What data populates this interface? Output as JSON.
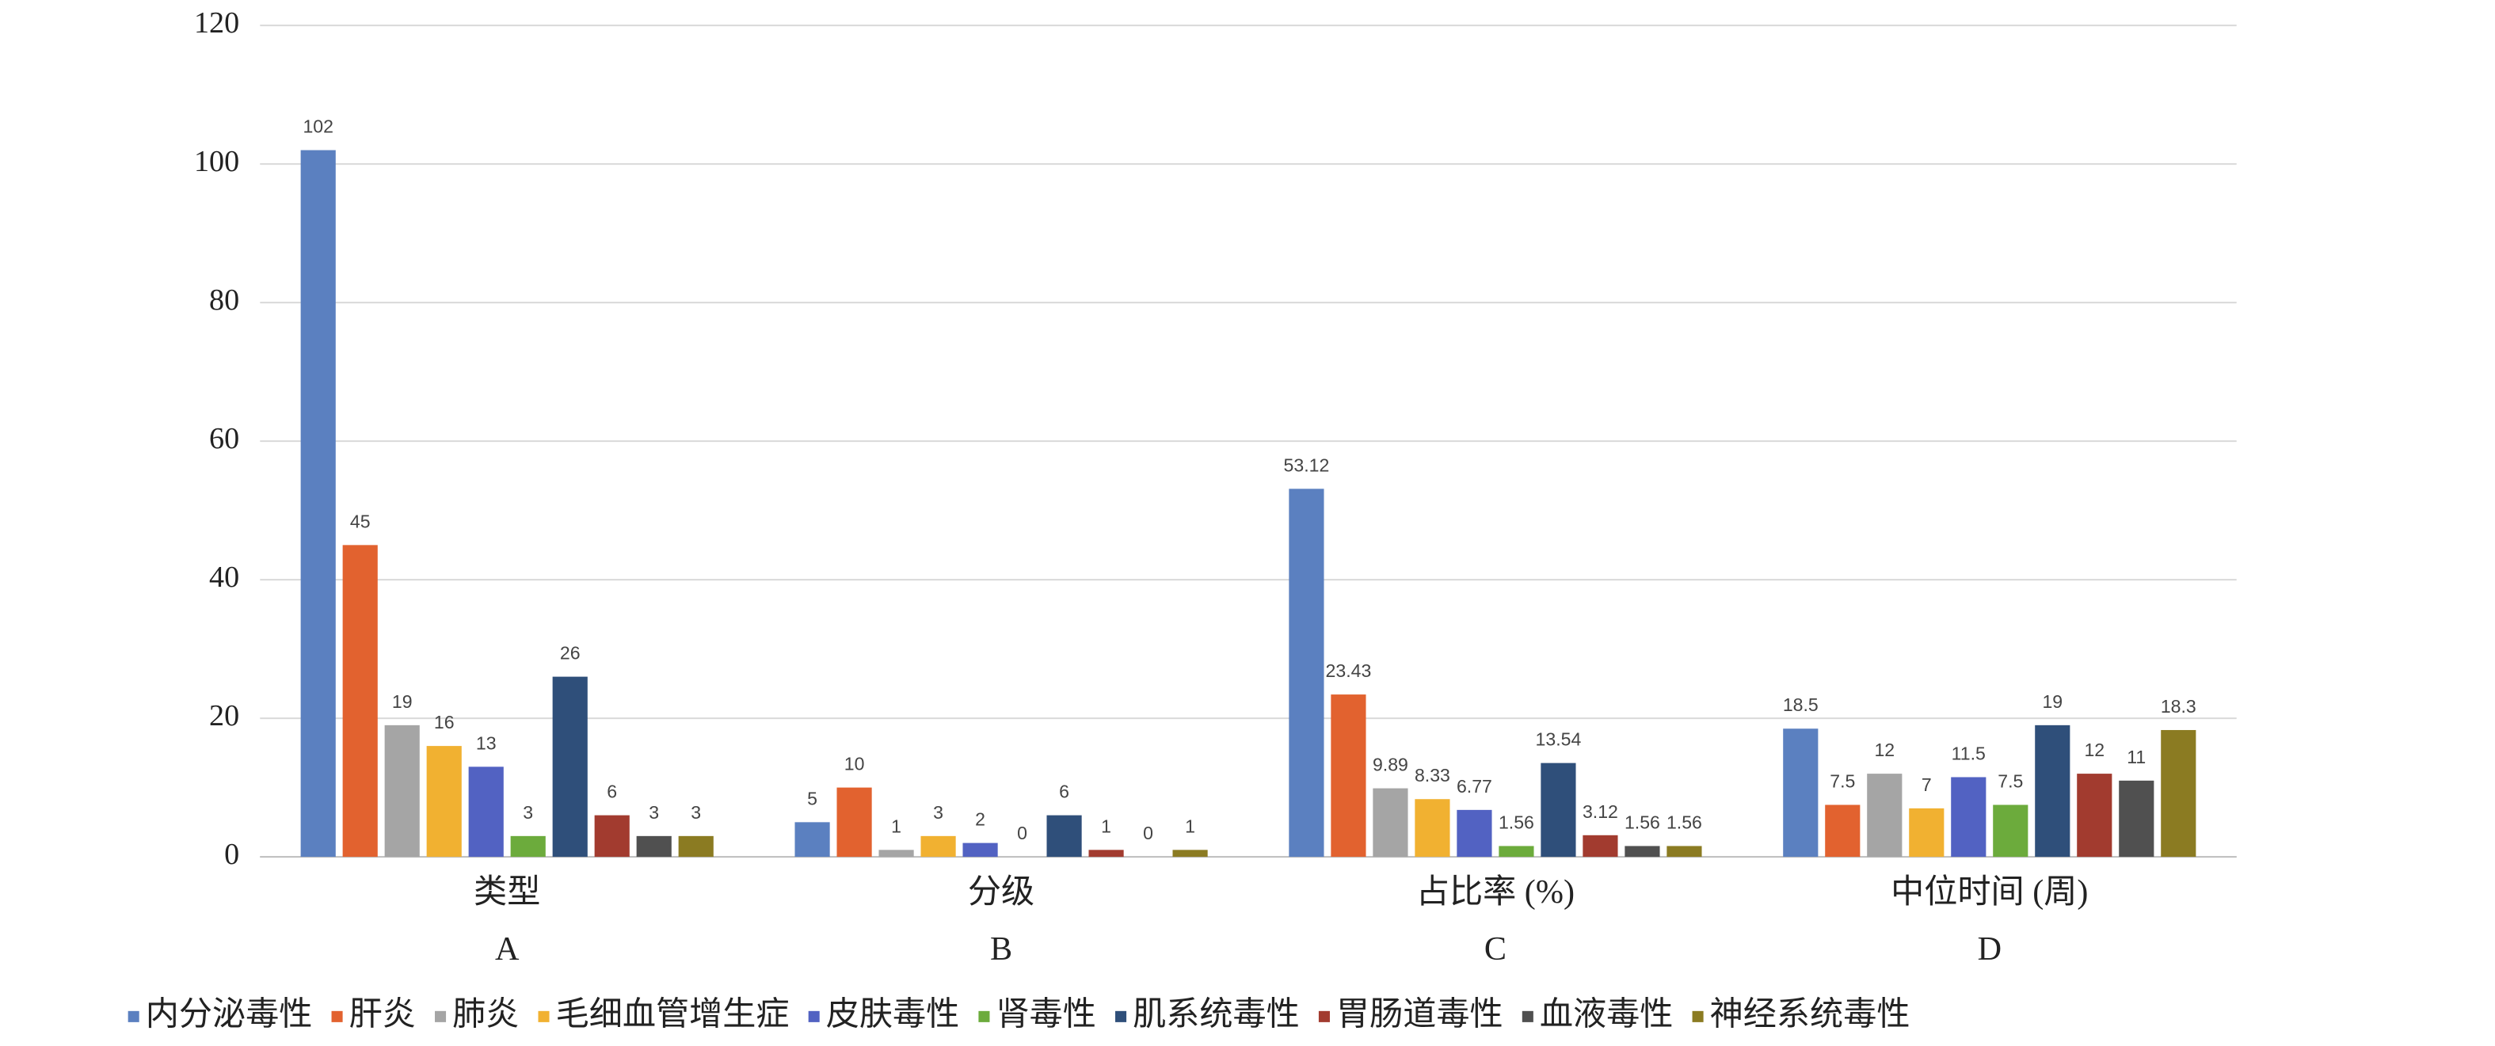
{
  "chart_data": {
    "type": "bar",
    "categories": [
      "类型",
      "分级",
      "占比率 (%)",
      "中位时间 (周)"
    ],
    "sub_categories": [
      "A",
      "B",
      "C",
      "D"
    ],
    "series": [
      {
        "name": "内分泌毒性",
        "color": "#5b80c0",
        "values": [
          102,
          5,
          53.12,
          18.5
        ]
      },
      {
        "name": "肝炎",
        "color": "#e2622f",
        "values": [
          45,
          10,
          23.43,
          7.5
        ]
      },
      {
        "name": "肺炎",
        "color": "#a5a5a5",
        "values": [
          19,
          1,
          9.89,
          12
        ]
      },
      {
        "name": "毛细血管增生症",
        "color": "#f1b131",
        "values": [
          16,
          3,
          8.33,
          7
        ]
      },
      {
        "name": "皮肤毒性",
        "color": "#5262c2",
        "values": [
          13,
          2,
          6.77,
          11.5
        ]
      },
      {
        "name": "肾毒性",
        "color": "#6cab3c",
        "values": [
          3,
          0,
          1.56,
          7.5
        ]
      },
      {
        "name": "肌系统毒性",
        "color": "#2f4f7a",
        "values": [
          26,
          6,
          13.54,
          19
        ]
      },
      {
        "name": "胃肠道毒性",
        "color": "#a23b2f",
        "values": [
          6,
          1,
          3.12,
          12
        ]
      },
      {
        "name": "血液毒性",
        "color": "#505050",
        "values": [
          3,
          0,
          1.56,
          11
        ]
      },
      {
        "name": "神经系统毒性",
        "color": "#8b7b22",
        "values": [
          3,
          1,
          1.56,
          18.3
        ]
      }
    ],
    "ylim": [
      0,
      120
    ],
    "yticks": [
      0,
      20,
      40,
      60,
      80,
      100,
      120
    ],
    "grid": true,
    "legend": "bottom"
  }
}
